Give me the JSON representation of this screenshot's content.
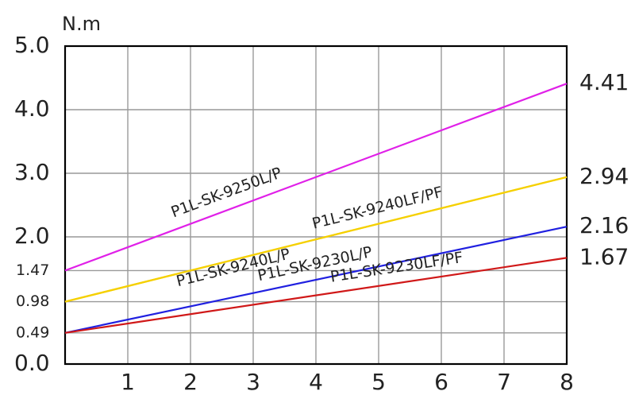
{
  "chart_data": {
    "type": "line",
    "ylabel": "N.m",
    "xlim": [
      0,
      8
    ],
    "ylim": [
      0,
      5
    ],
    "grid": true,
    "x_ticks": [
      "1",
      "2",
      "3",
      "4",
      "5",
      "6",
      "7",
      "8"
    ],
    "y_ticks": [
      {
        "value": 0,
        "label": "0.0"
      },
      {
        "value": 0.49,
        "label": "0.49"
      },
      {
        "value": 0.98,
        "label": "0.98"
      },
      {
        "value": 1.47,
        "label": "1.47"
      },
      {
        "value": 2.0,
        "label": "2.0"
      },
      {
        "value": 3.0,
        "label": "3.0"
      },
      {
        "value": 4.0,
        "label": "4.0"
      },
      {
        "value": 5.0,
        "label": "5.0"
      }
    ],
    "series": [
      {
        "name": "P1L-SK-9250L/P",
        "color": "#e020e8",
        "x": [
          0,
          8
        ],
        "y": [
          1.47,
          4.41
        ],
        "end_label": "4.41"
      },
      {
        "name": "P1L-SK-9240LF/PF",
        "color": "#f5d000",
        "x": [
          0,
          8
        ],
        "y": [
          0.98,
          2.94
        ],
        "end_label": "2.94"
      },
      {
        "name": "P1L-SK-9240L/P",
        "color": "#f5d000",
        "x": [
          0,
          8
        ],
        "y": [
          0.98,
          2.94
        ],
        "end_label": ""
      },
      {
        "name": "P1L-SK-9230L/P",
        "color": "#2020e0",
        "x": [
          0,
          8
        ],
        "y": [
          0.49,
          2.16
        ],
        "end_label": "2.16"
      },
      {
        "name": "P1L-SK-9230LF/PF",
        "color": "#d01818",
        "x": [
          0,
          8
        ],
        "y": [
          0.49,
          1.67
        ],
        "end_label": "1.67"
      }
    ]
  }
}
